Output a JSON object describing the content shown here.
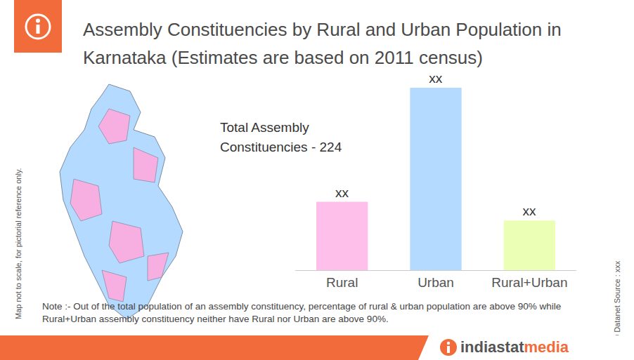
{
  "chart_data": {
    "type": "bar",
    "title": "Assembly Constituencies by Rural and Urban Population in Karnataka (Estimates are based on 2011 census)",
    "categories": [
      "Rural",
      "Urban",
      "Rural+Urban"
    ],
    "values": [
      51,
      136,
      37
    ],
    "value_labels": [
      "xx",
      "xx",
      "xx"
    ],
    "colors": [
      "#ffbfeb",
      "#b5daff",
      "#ebffb5"
    ],
    "data_labels": true,
    "tick_labels": "x",
    "grid": false,
    "ylim": [
      0,
      136
    ],
    "annotations": [
      "Total Assembly Constituencies - 224"
    ],
    "note": "Note :- Out of the total population of an assembly constituency, percentage of rural & urban population are above 90% while Rural+Urban assembly constituency neither have Rural nor Urban are above 90%."
  },
  "map_caption": "Map not to scale, for pictorial reference only.",
  "copyright": "© Datanet",
  "source": "Source : xxx",
  "brand": "indiastatmedia"
}
